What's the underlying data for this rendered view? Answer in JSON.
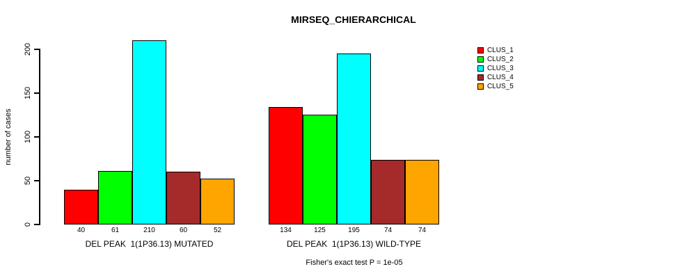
{
  "chart_data": {
    "type": "bar",
    "title": "MIRSEQ_CHIERARCHICAL",
    "ylabel": "number of cases",
    "xlabel": "",
    "ylim": [
      0,
      210
    ],
    "yticks": [
      0,
      50,
      100,
      150,
      200
    ],
    "grid": false,
    "legend_position": "top-right",
    "background": "#ffffff",
    "bar_border_color": "#000000",
    "categories": [
      "DEL PEAK  1(1P36.13) MUTATED",
      "DEL PEAK  1(1P36.13) WILD-TYPE"
    ],
    "series": [
      {
        "name": "CLUS_1",
        "color": "#FF0000",
        "values": [
          40,
          134
        ]
      },
      {
        "name": "CLUS_2",
        "color": "#00FF00",
        "values": [
          61,
          125
        ]
      },
      {
        "name": "CLUS_3",
        "color": "#00FFFF",
        "values": [
          210,
          195
        ]
      },
      {
        "name": "CLUS_4",
        "color": "#A52A2A",
        "values": [
          60,
          74
        ]
      },
      {
        "name": "CLUS_5",
        "color": "#FFA500",
        "values": [
          52,
          74
        ]
      }
    ],
    "value_labels_shown": true,
    "annotation": "Fisher's exact test P = 1e-05"
  },
  "legend": {
    "items": [
      {
        "label": "CLUS_1",
        "color": "#FF0000"
      },
      {
        "label": "CLUS_2",
        "color": "#00FF00"
      },
      {
        "label": "CLUS_3",
        "color": "#00FFFF"
      },
      {
        "label": "CLUS_4",
        "color": "#A52A2A"
      },
      {
        "label": "CLUS_5",
        "color": "#FFA500"
      }
    ]
  }
}
